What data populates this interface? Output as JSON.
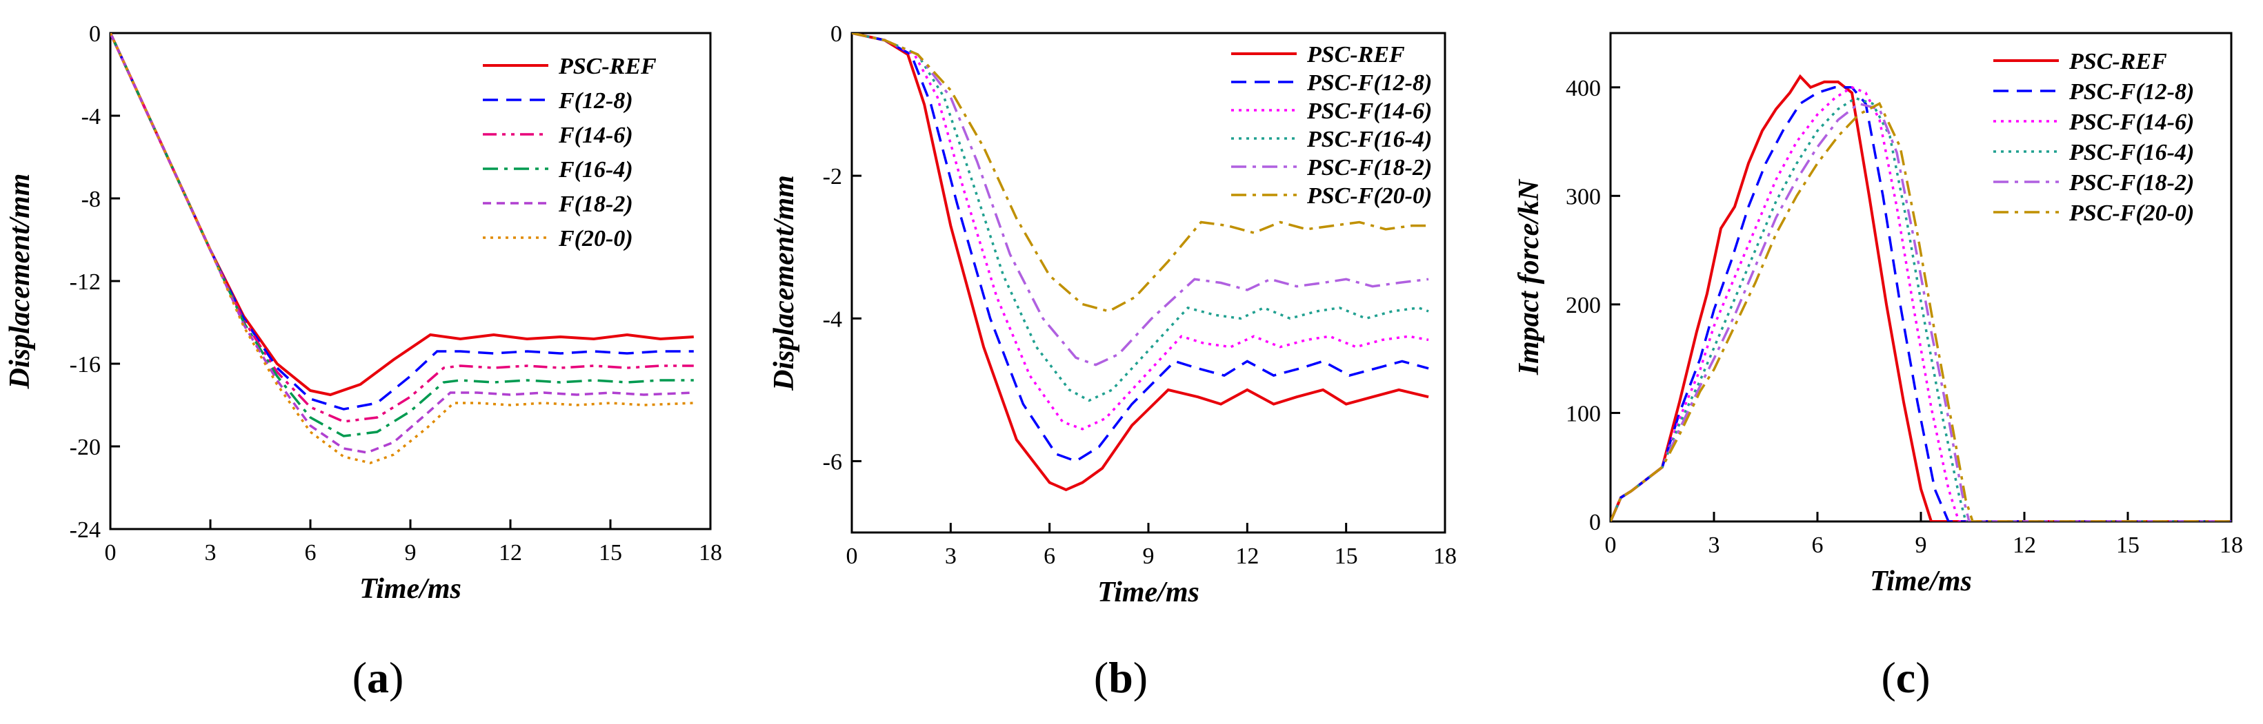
{
  "chart_data": [
    {
      "type": "line",
      "panel_label": "a",
      "xlabel": "Time/ms",
      "ylabel": "Displacement/mm",
      "xlim": [
        0,
        18
      ],
      "ylim": [
        -24,
        0
      ],
      "xticks": [
        "0",
        "3",
        "6",
        "9",
        "12",
        "15",
        "18"
      ],
      "yticks": [
        "0",
        "-4",
        "-8",
        "-12",
        "-16",
        "-20",
        "-24"
      ],
      "legend_position": "top-right",
      "series": [
        {
          "name": "PSC-REF",
          "color": "#e8000b",
          "dash": "solid",
          "x": [
            0,
            1,
            2,
            3,
            4,
            5,
            6,
            6.6,
            7.5,
            8.5,
            9.6,
            10.5,
            11.5,
            12.5,
            13.5,
            14.5,
            15.5,
            16.5,
            17.5
          ],
          "y": [
            0,
            -3.5,
            -7,
            -10.5,
            -13.7,
            -16,
            -17.3,
            -17.5,
            -17,
            -15.8,
            -14.6,
            -14.8,
            -14.6,
            -14.8,
            -14.7,
            -14.8,
            -14.6,
            -14.8,
            -14.7
          ]
        },
        {
          "name": "F(12-8)",
          "color": "#0000ff",
          "dash": "dashed",
          "x": [
            0,
            1,
            2,
            3,
            4,
            5,
            6,
            7,
            8,
            9,
            9.8,
            10.5,
            11.5,
            12.5,
            13.5,
            14.5,
            15.5,
            16.5,
            17.5
          ],
          "y": [
            0,
            -3.5,
            -7,
            -10.5,
            -13.8,
            -16.2,
            -17.7,
            -18.2,
            -17.9,
            -16.6,
            -15.4,
            -15.4,
            -15.5,
            -15.4,
            -15.5,
            -15.4,
            -15.5,
            -15.4,
            -15.4
          ]
        },
        {
          "name": "F(14-6)",
          "color": "#e8007a",
          "dash": "dash-dot-dot",
          "x": [
            0,
            1,
            2,
            3,
            4,
            5,
            6,
            7,
            8,
            9,
            10,
            10.5,
            11.5,
            12.5,
            13.5,
            14.5,
            15.5,
            16.5,
            17.5
          ],
          "y": [
            0,
            -3.5,
            -7,
            -10.5,
            -13.9,
            -16.4,
            -18.1,
            -18.8,
            -18.6,
            -17.6,
            -16.2,
            -16.1,
            -16.2,
            -16.1,
            -16.2,
            -16.1,
            -16.2,
            -16.1,
            -16.1
          ]
        },
        {
          "name": "F(16-4)",
          "color": "#009a50",
          "dash": "dash-dot",
          "x": [
            0,
            1,
            2,
            3,
            4,
            5,
            6,
            7,
            8,
            9,
            10,
            10.5,
            11.5,
            12.5,
            13.5,
            14.5,
            15.5,
            16.5,
            17.5
          ],
          "y": [
            0,
            -3.5,
            -7,
            -10.5,
            -14,
            -16.6,
            -18.6,
            -19.5,
            -19.3,
            -18.3,
            -16.9,
            -16.8,
            -16.9,
            -16.8,
            -16.9,
            -16.8,
            -16.9,
            -16.8,
            -16.8
          ]
        },
        {
          "name": "F(18-2)",
          "color": "#b040d0",
          "dash": "dashed-short",
          "x": [
            0,
            1,
            2,
            3,
            4,
            5,
            6,
            7,
            7.7,
            8.5,
            9.5,
            10.2,
            11,
            12,
            13,
            14,
            15,
            16,
            17.5
          ],
          "y": [
            0,
            -3.5,
            -7,
            -10.5,
            -14.1,
            -16.8,
            -19,
            -20.1,
            -20.3,
            -19.8,
            -18.4,
            -17.4,
            -17.4,
            -17.5,
            -17.4,
            -17.5,
            -17.4,
            -17.5,
            -17.4
          ]
        },
        {
          "name": "F(20-0)",
          "color": "#e08a00",
          "dash": "dotted",
          "x": [
            0,
            1,
            2,
            3,
            4,
            5,
            6,
            7,
            7.8,
            8.5,
            9.5,
            10.3,
            11,
            12,
            13,
            14,
            15,
            16,
            17.5
          ],
          "y": [
            0,
            -3.5,
            -7,
            -10.5,
            -14.2,
            -17,
            -19.3,
            -20.5,
            -20.8,
            -20.4,
            -19.1,
            -17.9,
            -17.9,
            -18,
            -17.9,
            -18,
            -17.9,
            -18,
            -17.9
          ]
        }
      ]
    },
    {
      "type": "line",
      "panel_label": "b",
      "xlabel": "Time/ms",
      "ylabel": "Displacement/mm",
      "xlim": [
        0,
        18
      ],
      "ylim": [
        -7,
        0
      ],
      "xticks": [
        "0",
        "3",
        "6",
        "9",
        "12",
        "15",
        "18"
      ],
      "yticks": [
        "0",
        "-2",
        "-4",
        "-6"
      ],
      "legend_position": "top-right",
      "series": [
        {
          "name": "PSC-REF",
          "color": "#e8000b",
          "dash": "solid",
          "x": [
            0,
            1,
            1.7,
            2.2,
            3,
            4,
            5,
            6,
            6.5,
            7,
            7.6,
            8.5,
            9.6,
            10.5,
            11.2,
            12,
            12.8,
            13.5,
            14.3,
            15,
            15.8,
            16.6,
            17.5
          ],
          "y": [
            0,
            -0.1,
            -0.3,
            -1,
            -2.7,
            -4.4,
            -5.7,
            -6.3,
            -6.4,
            -6.3,
            -6.1,
            -5.5,
            -5,
            -5.1,
            -5.2,
            -5,
            -5.2,
            -5.1,
            -5,
            -5.2,
            -5.1,
            -5,
            -5.1
          ]
        },
        {
          "name": "PSC-F(12-8)",
          "color": "#0000ff",
          "dash": "dashed",
          "x": [
            0,
            1,
            1.8,
            2.4,
            3.2,
            4.2,
            5.2,
            6.2,
            6.8,
            7.5,
            8.5,
            9.8,
            10.5,
            11.3,
            12,
            12.8,
            13.6,
            14.3,
            15.1,
            15.9,
            16.7,
            17.5
          ],
          "y": [
            0,
            -0.1,
            -0.3,
            -1,
            -2.4,
            -4,
            -5.2,
            -5.9,
            -6,
            -5.8,
            -5.2,
            -4.6,
            -4.7,
            -4.8,
            -4.6,
            -4.8,
            -4.7,
            -4.6,
            -4.8,
            -4.7,
            -4.6,
            -4.7
          ]
        },
        {
          "name": "PSC-F(14-6)",
          "color": "#ff00ff",
          "dash": "dotted",
          "x": [
            0,
            1,
            1.9,
            2.6,
            3.4,
            4.4,
            5.4,
            6.4,
            7,
            7.7,
            8.7,
            10,
            10.7,
            11.5,
            12.2,
            13,
            13.8,
            14.5,
            15.3,
            16.1,
            16.9,
            17.5
          ],
          "y": [
            0,
            -0.1,
            -0.3,
            -0.9,
            -2.2,
            -3.7,
            -4.8,
            -5.45,
            -5.55,
            -5.4,
            -4.9,
            -4.25,
            -4.35,
            -4.4,
            -4.25,
            -4.4,
            -4.3,
            -4.25,
            -4.4,
            -4.3,
            -4.25,
            -4.3
          ]
        },
        {
          "name": "PSC-F(16-4)",
          "color": "#20a090",
          "dash": "dotted",
          "x": [
            0,
            1,
            2,
            2.8,
            3.6,
            4.6,
            5.6,
            6.6,
            7.2,
            7.9,
            8.9,
            10.2,
            11,
            11.8,
            12.5,
            13.3,
            14.1,
            14.8,
            15.6,
            16.4,
            17.2,
            17.5
          ],
          "y": [
            0,
            -0.1,
            -0.3,
            -0.9,
            -2,
            -3.4,
            -4.4,
            -5,
            -5.15,
            -5,
            -4.5,
            -3.85,
            -3.95,
            -4,
            -3.85,
            -4,
            -3.9,
            -3.85,
            -4,
            -3.9,
            -3.85,
            -3.9
          ]
        },
        {
          "name": "PSC-F(18-2)",
          "color": "#b060e0",
          "dash": "dash-dot",
          "x": [
            0,
            1,
            2,
            3,
            3.8,
            4.8,
            5.8,
            6.8,
            7.4,
            8.1,
            9.1,
            10.4,
            11.2,
            12,
            12.7,
            13.5,
            14.3,
            15,
            15.8,
            16.6,
            17.5
          ],
          "y": [
            0,
            -0.1,
            -0.3,
            -0.9,
            -1.8,
            -3.1,
            -4,
            -4.55,
            -4.65,
            -4.5,
            -4,
            -3.45,
            -3.5,
            -3.6,
            -3.45,
            -3.55,
            -3.5,
            -3.45,
            -3.55,
            -3.5,
            -3.45
          ]
        },
        {
          "name": "PSC-F(20-0)",
          "color": "#c09000",
          "dash": "dash-dot",
          "x": [
            0,
            1,
            2,
            3,
            4,
            5,
            6,
            7,
            7.8,
            8.6,
            9.6,
            10.6,
            11.4,
            12.2,
            13,
            13.8,
            14.6,
            15.4,
            16.2,
            17,
            17.5
          ],
          "y": [
            0,
            -0.1,
            -0.3,
            -0.8,
            -1.6,
            -2.6,
            -3.4,
            -3.8,
            -3.9,
            -3.7,
            -3.2,
            -2.65,
            -2.7,
            -2.8,
            -2.65,
            -2.75,
            -2.7,
            -2.65,
            -2.75,
            -2.7,
            -2.7
          ]
        }
      ]
    },
    {
      "type": "line",
      "panel_label": "c",
      "xlabel": "Time/ms",
      "ylabel": "Impact force/kN",
      "xlim": [
        0,
        18
      ],
      "ylim": [
        0,
        450
      ],
      "xticks": [
        "0",
        "3",
        "6",
        "9",
        "12",
        "15",
        "18"
      ],
      "yticks": [
        "0",
        "100",
        "200",
        "300",
        "400"
      ],
      "legend_position": "top-right",
      "series": [
        {
          "name": "PSC-REF",
          "color": "#e8000b",
          "dash": "solid",
          "x": [
            0,
            0.3,
            0.6,
            1.5,
            2,
            2.5,
            2.8,
            3.2,
            3.6,
            4,
            4.4,
            4.8,
            5.2,
            5.5,
            5.8,
            6.2,
            6.6,
            7,
            7.5,
            8,
            8.5,
            9,
            9.3,
            9.5,
            18
          ],
          "y": [
            0,
            22,
            28,
            50,
            110,
            175,
            210,
            270,
            290,
            330,
            360,
            380,
            395,
            410,
            400,
            405,
            405,
            395,
            300,
            200,
            110,
            30,
            0,
            0,
            0
          ]
        },
        {
          "name": "PSC-F(12-8)",
          "color": "#0000ff",
          "dash": "dashed",
          "x": [
            0,
            0.3,
            0.6,
            1.5,
            2,
            2.6,
            3,
            3.5,
            4,
            4.5,
            5,
            5.5,
            6,
            6.5,
            7,
            7.4,
            7.9,
            8.4,
            8.9,
            9.4,
            9.8,
            18
          ],
          "y": [
            0,
            22,
            28,
            50,
            100,
            150,
            195,
            240,
            290,
            330,
            360,
            385,
            395,
            400,
            400,
            385,
            300,
            200,
            110,
            30,
            0,
            0
          ]
        },
        {
          "name": "PSC-F(14-6)",
          "color": "#ff00ff",
          "dash": "dotted",
          "x": [
            0,
            0.3,
            0.6,
            1.5,
            2,
            2.6,
            3,
            3.6,
            4.2,
            4.8,
            5.4,
            6,
            6.5,
            7,
            7.4,
            7.8,
            8.3,
            8.8,
            9.3,
            9.8,
            10.1,
            18
          ],
          "y": [
            0,
            22,
            28,
            50,
            95,
            140,
            180,
            225,
            270,
            315,
            350,
            375,
            390,
            400,
            395,
            370,
            290,
            195,
            105,
            30,
            0,
            0
          ]
        },
        {
          "name": "PSC-F(16-4)",
          "color": "#20a090",
          "dash": "dotted",
          "x": [
            0,
            0.3,
            0.6,
            1.5,
            2,
            2.6,
            3,
            3.6,
            4.2,
            4.8,
            5.4,
            6,
            6.6,
            7.1,
            7.6,
            8.1,
            8.6,
            9.1,
            9.6,
            10.1,
            10.3,
            18
          ],
          "y": [
            0,
            22,
            28,
            50,
            90,
            130,
            160,
            205,
            250,
            295,
            330,
            360,
            380,
            390,
            385,
            355,
            275,
            185,
            100,
            25,
            0,
            0
          ]
        },
        {
          "name": "PSC-F(18-2)",
          "color": "#b060e0",
          "dash": "dash-dot",
          "x": [
            0,
            0.3,
            0.6,
            1.5,
            2,
            2.6,
            3,
            3.6,
            4.2,
            4.8,
            5.4,
            6,
            6.6,
            7.2,
            7.8,
            8.3,
            8.8,
            9.3,
            9.8,
            10.2,
            10.4,
            18
          ],
          "y": [
            0,
            22,
            28,
            50,
            85,
            125,
            150,
            190,
            235,
            280,
            315,
            345,
            370,
            385,
            380,
            340,
            260,
            175,
            95,
            25,
            0,
            0
          ]
        },
        {
          "name": "PSC-F(20-0)",
          "color": "#c09000",
          "dash": "dash-dot",
          "x": [
            0,
            0.3,
            0.6,
            1.5,
            2,
            2.6,
            3,
            3.6,
            4.2,
            4.8,
            5.4,
            6,
            6.6,
            7.2,
            7.8,
            8.4,
            8.9,
            9.4,
            9.9,
            10.3,
            10.5,
            18
          ],
          "y": [
            0,
            22,
            28,
            50,
            80,
            120,
            140,
            180,
            220,
            265,
            300,
            330,
            355,
            375,
            385,
            345,
            265,
            175,
            90,
            20,
            0,
            0
          ]
        }
      ]
    }
  ]
}
